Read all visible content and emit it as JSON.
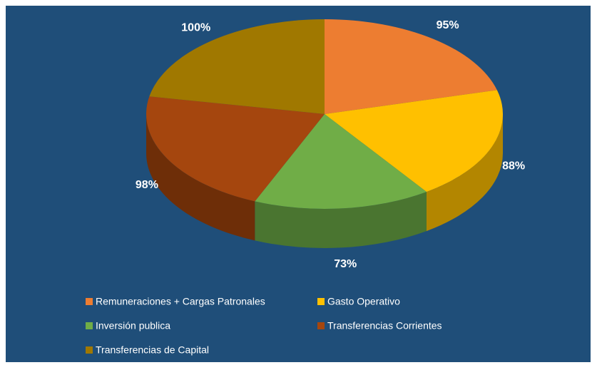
{
  "chart_data": {
    "type": "pie",
    "categories": [
      "Remuneraciones + Cargas Patronales",
      "Gasto Operativo",
      "Inversión publica",
      "Transferencias Corrientes",
      "Transferencias de Capital"
    ],
    "values": [
      95,
      88,
      73,
      98,
      100
    ],
    "value_labels": [
      "95%",
      "88%",
      "73%",
      "98%",
      "100%"
    ],
    "colors": [
      "#ED7D31",
      "#FFC000",
      "#70AD47",
      "#A5460E",
      "#A07800"
    ],
    "side_colors": [
      "#A8561E",
      "#B38600",
      "#4A7530",
      "#6E2E08",
      "#6B5000"
    ],
    "legend": "bottom"
  }
}
